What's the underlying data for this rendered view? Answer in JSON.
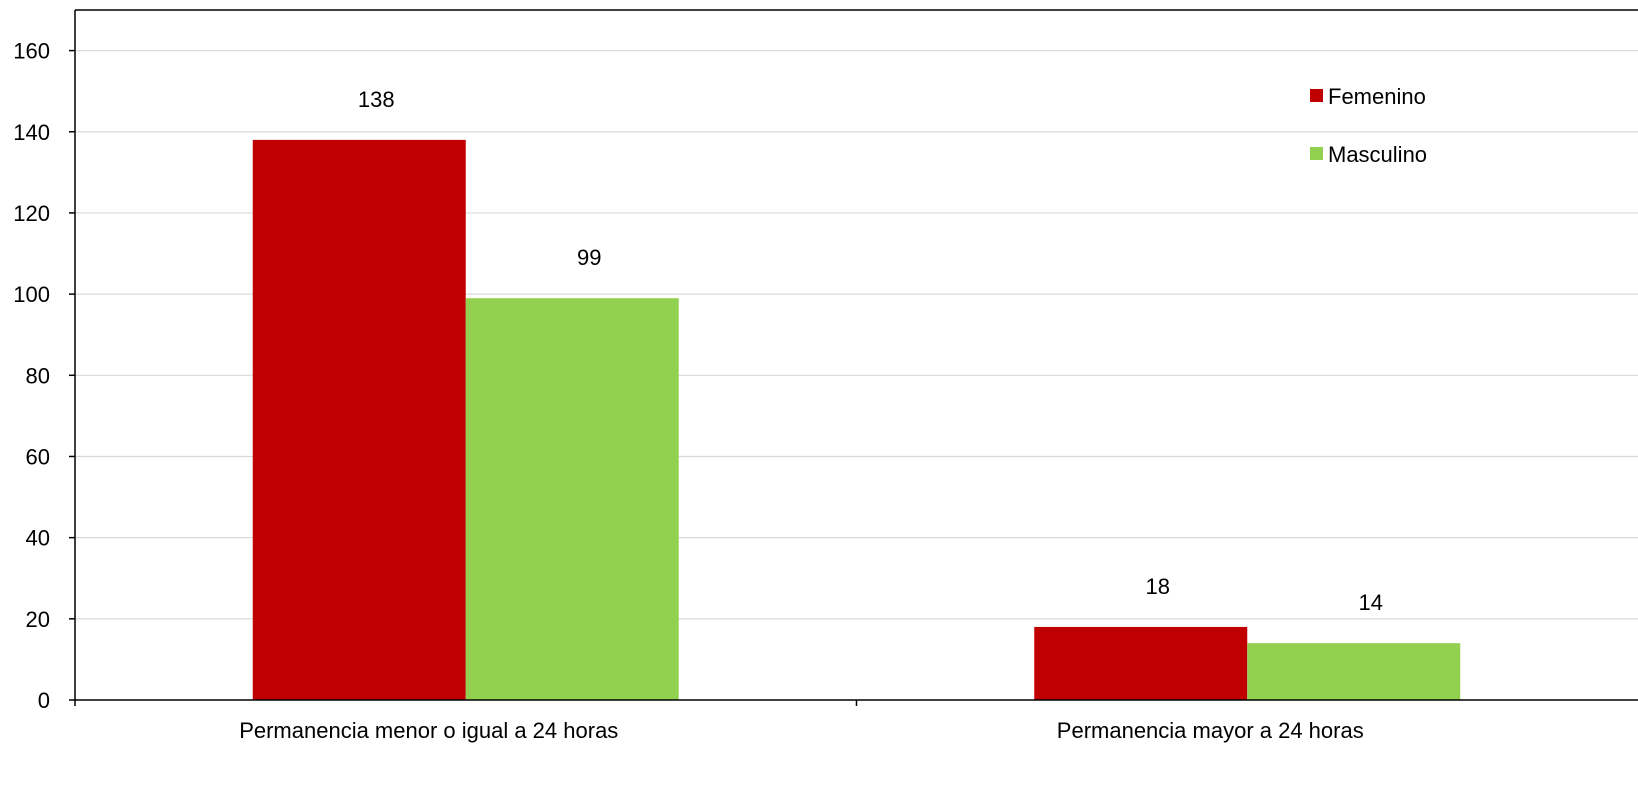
{
  "chart_data": {
    "type": "bar",
    "categories": [
      "Permanencia menor o igual a 24 horas",
      "Permanencia mayor a 24 horas"
    ],
    "series": [
      {
        "name": "Femenino",
        "values": [
          138,
          18
        ],
        "color": "#C00000"
      },
      {
        "name": "Masculino",
        "values": [
          99,
          14
        ],
        "color": "#92D050"
      }
    ],
    "ylim": [
      0,
      170
    ],
    "yticks": [
      0,
      20,
      40,
      60,
      80,
      100,
      120,
      140,
      160
    ],
    "grid": true,
    "legend_position": "top-right",
    "data_labels": true
  }
}
